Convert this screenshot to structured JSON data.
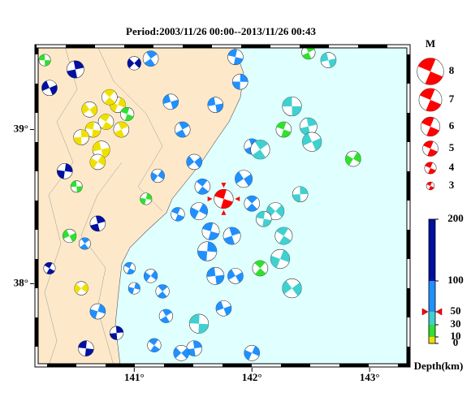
{
  "title": "Period:2003/11/26 00:00--2013/11/26 00:43",
  "map": {
    "lonlim": [
      140.17,
      143.33
    ],
    "latlim": [
      37.47,
      39.54
    ],
    "lon_ticks": [
      {
        "value": 141,
        "label": "141°"
      },
      {
        "value": 142,
        "label": "142°"
      },
      {
        "value": 143,
        "label": "143°"
      }
    ],
    "lat_ticks": [
      {
        "value": 39,
        "label": "39°"
      },
      {
        "value": 38,
        "label": "38°"
      }
    ]
  },
  "magnitude_legend": {
    "title": "M",
    "items": [
      8,
      7,
      6,
      5,
      4,
      3
    ],
    "color": "#ff0000"
  },
  "depth_scale": {
    "label": "Depth(km)",
    "ticks": [
      0,
      10,
      30,
      50,
      100,
      200
    ],
    "colors": [
      "#f0e000",
      "#30e030",
      "#40d0d0",
      "#2090ff",
      "#0010a0"
    ]
  },
  "highlighted_event": {
    "lon": 141.76,
    "lat": 38.55,
    "depth": 50,
    "mag": 6,
    "color": "#ff0000"
  },
  "events": [
    [
      140.24,
      39.45,
      20,
      4
    ],
    [
      140.5,
      39.39,
      150,
      5.5
    ],
    [
      140.28,
      39.27,
      120,
      5
    ],
    [
      141.14,
      39.46,
      60,
      5
    ],
    [
      141.0,
      39.43,
      120,
      4.5
    ],
    [
      140.76,
      39.05,
      5,
      5
    ],
    [
      140.86,
      39.16,
      5,
      5
    ],
    [
      140.65,
      39.0,
      5,
      5
    ],
    [
      140.55,
      38.95,
      5,
      5
    ],
    [
      140.72,
      38.87,
      5,
      5.5
    ],
    [
      140.89,
      39.0,
      5,
      5
    ],
    [
      140.62,
      39.13,
      5,
      5
    ],
    [
      140.79,
      39.21,
      5,
      5
    ],
    [
      140.69,
      38.79,
      5,
      5
    ],
    [
      140.94,
      39.1,
      20,
      4.5
    ],
    [
      140.41,
      38.73,
      140,
      5
    ],
    [
      140.51,
      38.63,
      20,
      4
    ],
    [
      140.69,
      38.39,
      150,
      5
    ],
    [
      140.45,
      38.31,
      20,
      4.5
    ],
    [
      140.58,
      38.26,
      60,
      4
    ],
    [
      140.55,
      37.97,
      5,
      4.5
    ],
    [
      140.28,
      38.1,
      150,
      4
    ],
    [
      140.69,
      37.82,
      60,
      5
    ],
    [
      140.59,
      37.58,
      150,
      5
    ],
    [
      140.85,
      37.68,
      150,
      4.5
    ],
    [
      141.31,
      39.18,
      60,
      5
    ],
    [
      141.41,
      39.0,
      60,
      5
    ],
    [
      141.51,
      38.79,
      60,
      5
    ],
    [
      141.58,
      38.63,
      60,
      5
    ],
    [
      141.55,
      38.47,
      60,
      5.5
    ],
    [
      141.65,
      38.34,
      60,
      5.5
    ],
    [
      141.62,
      38.21,
      60,
      6
    ],
    [
      141.69,
      38.05,
      60,
      5.5
    ],
    [
      141.83,
      38.31,
      60,
      5.5
    ],
    [
      141.86,
      38.05,
      60,
      5
    ],
    [
      141.24,
      37.95,
      60,
      4.5
    ],
    [
      141.14,
      38.05,
      60,
      4.5
    ],
    [
      140.96,
      38.1,
      60,
      4
    ],
    [
      141.0,
      37.97,
      60,
      4
    ],
    [
      141.55,
      37.74,
      40,
      6
    ],
    [
      141.51,
      37.58,
      60,
      5
    ],
    [
      141.76,
      37.84,
      60,
      5
    ],
    [
      141.27,
      37.79,
      60,
      4.5
    ],
    [
      141.4,
      37.55,
      60,
      5
    ],
    [
      141.17,
      37.6,
      60,
      4.5
    ],
    [
      142.0,
      37.55,
      60,
      5
    ],
    [
      141.86,
      39.47,
      60,
      5
    ],
    [
      141.9,
      39.31,
      60,
      5
    ],
    [
      141.69,
      39.16,
      60,
      5
    ],
    [
      142.0,
      38.89,
      60,
      5
    ],
    [
      141.93,
      38.68,
      60,
      5.5
    ],
    [
      142.0,
      38.52,
      60,
      5
    ],
    [
      141.2,
      38.7,
      60,
      4.5
    ],
    [
      141.37,
      38.45,
      60,
      4.5
    ],
    [
      141.1,
      38.55,
      20,
      4
    ],
    [
      142.34,
      39.15,
      40,
      6
    ],
    [
      142.48,
      39.02,
      40,
      5.5
    ],
    [
      142.51,
      38.92,
      40,
      6
    ],
    [
      142.07,
      38.87,
      40,
      6
    ],
    [
      142.2,
      38.47,
      40,
      5.5
    ],
    [
      142.27,
      38.31,
      40,
      5.5
    ],
    [
      142.24,
      38.16,
      40,
      6
    ],
    [
      142.1,
      38.42,
      40,
      5
    ],
    [
      142.41,
      38.58,
      40,
      5
    ],
    [
      142.65,
      39.45,
      40,
      5
    ],
    [
      142.48,
      39.5,
      20,
      4.5
    ],
    [
      142.34,
      37.97,
      40,
      6
    ],
    [
      142.07,
      38.1,
      20,
      5
    ],
    [
      142.86,
      38.81,
      20,
      5
    ],
    [
      142.27,
      39.0,
      20,
      5
    ]
  ]
}
